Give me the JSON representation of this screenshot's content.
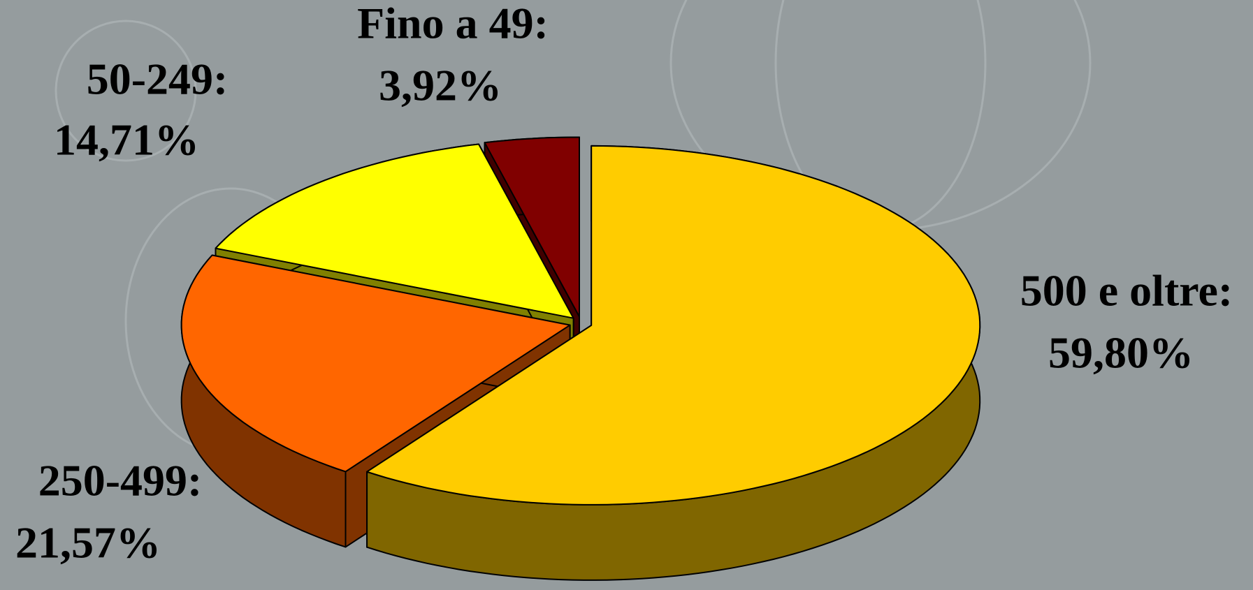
{
  "chart_data": {
    "type": "pie",
    "categories": [
      "500 e oltre:",
      "250-499:",
      "50-249:",
      "Fino a 49:"
    ],
    "values": [
      59.8,
      21.57,
      14.71,
      3.92
    ],
    "value_labels": [
      "59,80%",
      "21,57%",
      "14,71%",
      "3,92%"
    ],
    "colors": [
      "#ffcc00",
      "#ff6600",
      "#ffff00",
      "#800000"
    ]
  }
}
